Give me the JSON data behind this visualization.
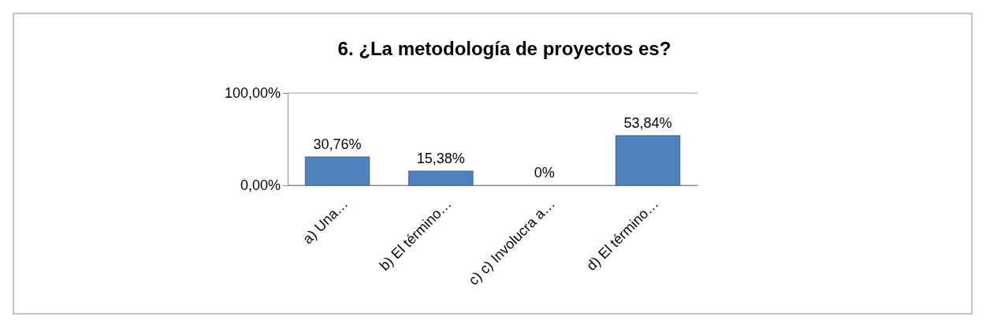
{
  "chart_data": {
    "type": "bar",
    "title": "6. ¿La metodología de proyectos es?",
    "categories": [
      "a) Una…",
      "b) El término…",
      "c) c) Involucra a…",
      "d) El término…"
    ],
    "values": [
      30.76,
      15.38,
      0,
      53.84
    ],
    "value_labels": [
      "30,76%",
      "15,38%",
      "0%",
      "53,84%"
    ],
    "color": "#4f81bd",
    "ylim": [
      0,
      100
    ],
    "yticks": [
      {
        "value": 0,
        "label": "0,00%"
      },
      {
        "value": 100,
        "label": "100,00%"
      }
    ],
    "grid": "y"
  }
}
